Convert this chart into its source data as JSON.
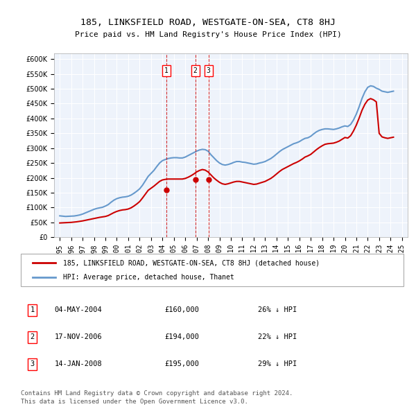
{
  "title": "185, LINKSFIELD ROAD, WESTGATE-ON-SEA, CT8 8HJ",
  "subtitle": "Price paid vs. HM Land Registry's House Price Index (HPI)",
  "legend_line1": "185, LINKSFIELD ROAD, WESTGATE-ON-SEA, CT8 8HJ (detached house)",
  "legend_line2": "HPI: Average price, detached house, Thanet",
  "footer1": "Contains HM Land Registry data © Crown copyright and database right 2024.",
  "footer2": "This data is licensed under the Open Government Licence v3.0.",
  "transactions": [
    {
      "num": 1,
      "date": "04-MAY-2004",
      "price": "£160,000",
      "pct": "26% ↓ HPI",
      "x_year": 2004.35
    },
    {
      "num": 2,
      "date": "17-NOV-2006",
      "price": "£194,000",
      "pct": "22% ↓ HPI",
      "x_year": 2006.88
    },
    {
      "num": 3,
      "date": "14-JAN-2008",
      "price": "£195,000",
      "pct": "29% ↓ HPI",
      "x_year": 2008.04
    }
  ],
  "hpi_color": "#6699cc",
  "price_color": "#cc0000",
  "dashed_color": "#cc0000",
  "background_color": "#eef3fb",
  "grid_color": "#ffffff",
  "ylim": [
    0,
    620000
  ],
  "xlim_start": 1994.5,
  "xlim_end": 2025.5,
  "hpi_data": {
    "years": [
      1995.0,
      1995.25,
      1995.5,
      1995.75,
      1996.0,
      1996.25,
      1996.5,
      1996.75,
      1997.0,
      1997.25,
      1997.5,
      1997.75,
      1998.0,
      1998.25,
      1998.5,
      1998.75,
      1999.0,
      1999.25,
      1999.5,
      1999.75,
      2000.0,
      2000.25,
      2000.5,
      2000.75,
      2001.0,
      2001.25,
      2001.5,
      2001.75,
      2002.0,
      2002.25,
      2002.5,
      2002.75,
      2003.0,
      2003.25,
      2003.5,
      2003.75,
      2004.0,
      2004.25,
      2004.5,
      2004.75,
      2005.0,
      2005.25,
      2005.5,
      2005.75,
      2006.0,
      2006.25,
      2006.5,
      2006.75,
      2007.0,
      2007.25,
      2007.5,
      2007.75,
      2008.0,
      2008.25,
      2008.5,
      2008.75,
      2009.0,
      2009.25,
      2009.5,
      2009.75,
      2010.0,
      2010.25,
      2010.5,
      2010.75,
      2011.0,
      2011.25,
      2011.5,
      2011.75,
      2012.0,
      2012.25,
      2012.5,
      2012.75,
      2013.0,
      2013.25,
      2013.5,
      2013.75,
      2014.0,
      2014.25,
      2014.5,
      2014.75,
      2015.0,
      2015.25,
      2015.5,
      2015.75,
      2016.0,
      2016.25,
      2016.5,
      2016.75,
      2017.0,
      2017.25,
      2017.5,
      2017.75,
      2018.0,
      2018.25,
      2018.5,
      2018.75,
      2019.0,
      2019.25,
      2019.5,
      2019.75,
      2020.0,
      2020.25,
      2020.5,
      2020.75,
      2021.0,
      2021.25,
      2021.5,
      2021.75,
      2022.0,
      2022.25,
      2022.5,
      2022.75,
      2023.0,
      2023.25,
      2023.5,
      2023.75,
      2024.0,
      2024.25
    ],
    "values": [
      72000,
      71000,
      70000,
      70500,
      71000,
      71500,
      73000,
      75000,
      78000,
      82000,
      86000,
      90000,
      94000,
      97000,
      99000,
      101000,
      105000,
      110000,
      118000,
      125000,
      130000,
      133000,
      135000,
      136000,
      138000,
      142000,
      148000,
      155000,
      163000,
      175000,
      190000,
      205000,
      215000,
      225000,
      238000,
      250000,
      258000,
      262000,
      265000,
      267000,
      268000,
      268000,
      267000,
      267000,
      270000,
      275000,
      280000,
      285000,
      290000,
      294000,
      296000,
      295000,
      290000,
      278000,
      268000,
      258000,
      250000,
      245000,
      243000,
      245000,
      248000,
      252000,
      255000,
      255000,
      253000,
      252000,
      250000,
      248000,
      246000,
      247000,
      250000,
      252000,
      255000,
      260000,
      265000,
      272000,
      280000,
      288000,
      295000,
      300000,
      305000,
      310000,
      315000,
      318000,
      322000,
      328000,
      333000,
      335000,
      340000,
      348000,
      355000,
      360000,
      363000,
      365000,
      365000,
      364000,
      363000,
      365000,
      368000,
      372000,
      375000,
      373000,
      380000,
      395000,
      415000,
      440000,
      468000,
      490000,
      505000,
      510000,
      508000,
      502000,
      498000,
      492000,
      490000,
      488000,
      490000,
      492000
    ]
  },
  "price_data": {
    "years": [
      1995.0,
      1995.25,
      1995.5,
      1995.75,
      1996.0,
      1996.25,
      1996.5,
      1996.75,
      1997.0,
      1997.25,
      1997.5,
      1997.75,
      1998.0,
      1998.25,
      1998.5,
      1998.75,
      1999.0,
      1999.25,
      1999.5,
      1999.75,
      2000.0,
      2000.25,
      2000.5,
      2000.75,
      2001.0,
      2001.25,
      2001.5,
      2001.75,
      2002.0,
      2002.25,
      2002.5,
      2002.75,
      2003.0,
      2003.25,
      2003.5,
      2003.75,
      2004.0,
      2004.25,
      2004.5,
      2004.75,
      2005.0,
      2005.25,
      2005.5,
      2005.75,
      2006.0,
      2006.25,
      2006.5,
      2006.75,
      2007.0,
      2007.25,
      2007.5,
      2007.75,
      2008.0,
      2008.25,
      2008.5,
      2008.75,
      2009.0,
      2009.25,
      2009.5,
      2009.75,
      2010.0,
      2010.25,
      2010.5,
      2010.75,
      2011.0,
      2011.25,
      2011.5,
      2011.75,
      2012.0,
      2012.25,
      2012.5,
      2012.75,
      2013.0,
      2013.25,
      2013.5,
      2013.75,
      2014.0,
      2014.25,
      2014.5,
      2014.75,
      2015.0,
      2015.25,
      2015.5,
      2015.75,
      2016.0,
      2016.25,
      2016.5,
      2016.75,
      2017.0,
      2017.25,
      2017.5,
      2017.75,
      2018.0,
      2018.25,
      2018.5,
      2018.75,
      2019.0,
      2019.25,
      2019.5,
      2019.75,
      2020.0,
      2020.25,
      2020.5,
      2020.75,
      2021.0,
      2021.25,
      2021.5,
      2021.75,
      2022.0,
      2022.25,
      2022.5,
      2022.75,
      2023.0,
      2023.25,
      2023.5,
      2023.75,
      2024.0,
      2024.25
    ],
    "values": [
      48000,
      48500,
      49000,
      49500,
      50000,
      51000,
      52000,
      53500,
      55000,
      57000,
      59000,
      61000,
      63000,
      65000,
      67000,
      68500,
      70000,
      73000,
      78000,
      83000,
      87000,
      90000,
      92000,
      93000,
      95000,
      99000,
      105000,
      112000,
      120000,
      132000,
      145000,
      158000,
      165000,
      172000,
      180000,
      188000,
      193000,
      195000,
      196000,
      196000,
      196000,
      196000,
      196000,
      196000,
      198000,
      202000,
      207000,
      213000,
      220000,
      225000,
      228000,
      226000,
      220000,
      210000,
      200000,
      192000,
      185000,
      180000,
      178000,
      180000,
      183000,
      186000,
      188000,
      188000,
      186000,
      184000,
      182000,
      180000,
      178000,
      179000,
      182000,
      185000,
      188000,
      193000,
      198000,
      205000,
      213000,
      221000,
      228000,
      233000,
      238000,
      243000,
      248000,
      252000,
      257000,
      263000,
      270000,
      274000,
      279000,
      287000,
      295000,
      302000,
      308000,
      313000,
      315000,
      316000,
      317000,
      320000,
      324000,
      330000,
      336000,
      334000,
      342000,
      358000,
      378000,
      402000,
      428000,
      448000,
      462000,
      467000,
      463000,
      456000,
      350000,
      338000,
      335000,
      333000,
      335000,
      337000
    ]
  }
}
